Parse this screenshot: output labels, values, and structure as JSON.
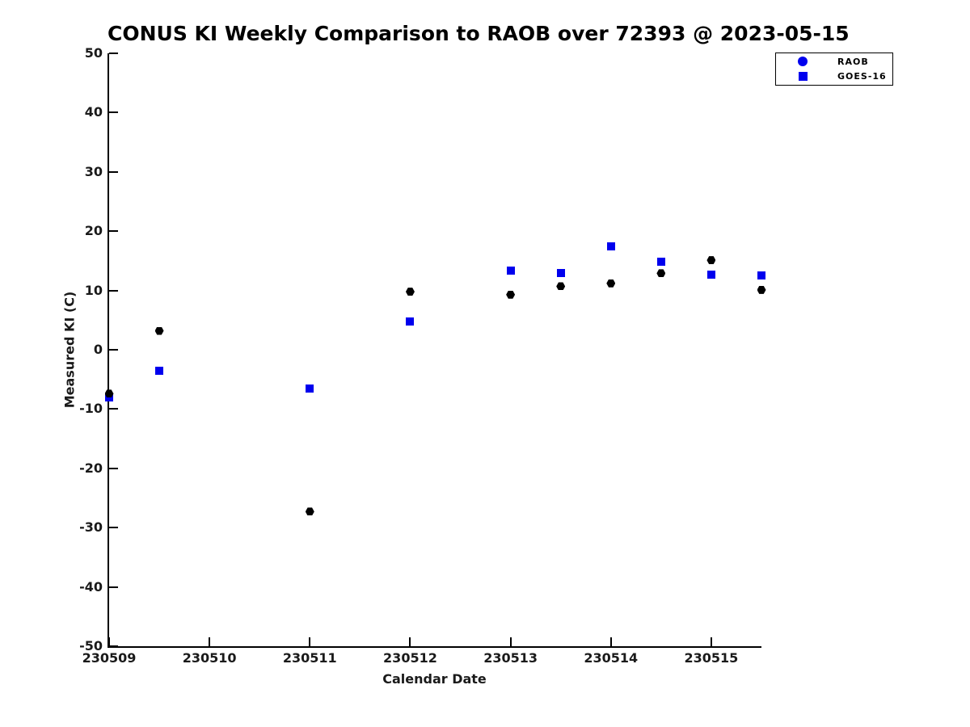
{
  "chart_data": {
    "type": "scatter",
    "title": "CONUS KI Weekly Comparison to RAOB over 72393 @ 2023-05-15",
    "xlabel": "Calendar Date",
    "ylabel": "Measured KI (C)",
    "xlim": [
      230509,
      230515.5
    ],
    "ylim": [
      -50,
      50
    ],
    "x_ticks": [
      230509,
      230510,
      230511,
      230512,
      230513,
      230514,
      230515
    ],
    "y_ticks": [
      50,
      40,
      30,
      20,
      10,
      0,
      -10,
      -20,
      -30,
      -40,
      -50
    ],
    "grid": false,
    "legend_position": "top-right",
    "series": [
      {
        "name": "GOES-16",
        "marker": "square",
        "color": "#0000EE",
        "points": [
          [
            230509,
            -8.1
          ],
          [
            230509.5,
            -3.5
          ],
          [
            230511,
            -6.6
          ],
          [
            230512,
            4.8
          ],
          [
            230513,
            13.3
          ],
          [
            230513.5,
            13.0
          ],
          [
            230514,
            17.4
          ],
          [
            230514.5,
            14.9
          ],
          [
            230515,
            12.7
          ],
          [
            230515.5,
            12.5
          ]
        ]
      },
      {
        "name": "RAOB",
        "marker": "hexagon",
        "color": "#000000",
        "points": [
          [
            230509,
            -7.4
          ],
          [
            230509.5,
            3.2
          ],
          [
            230511,
            -27.3
          ],
          [
            230512,
            9.8
          ],
          [
            230513,
            9.3
          ],
          [
            230513.5,
            10.7
          ],
          [
            230514,
            11.2
          ],
          [
            230514.5,
            12.9
          ],
          [
            230515,
            15.1
          ],
          [
            230515.5,
            10.1
          ]
        ]
      }
    ],
    "legend": [
      {
        "label": "RAOB",
        "marker": "circle",
        "color": "#0000EE"
      },
      {
        "label": "GOES-16",
        "marker": "square",
        "color": "#0000EE"
      }
    ]
  }
}
